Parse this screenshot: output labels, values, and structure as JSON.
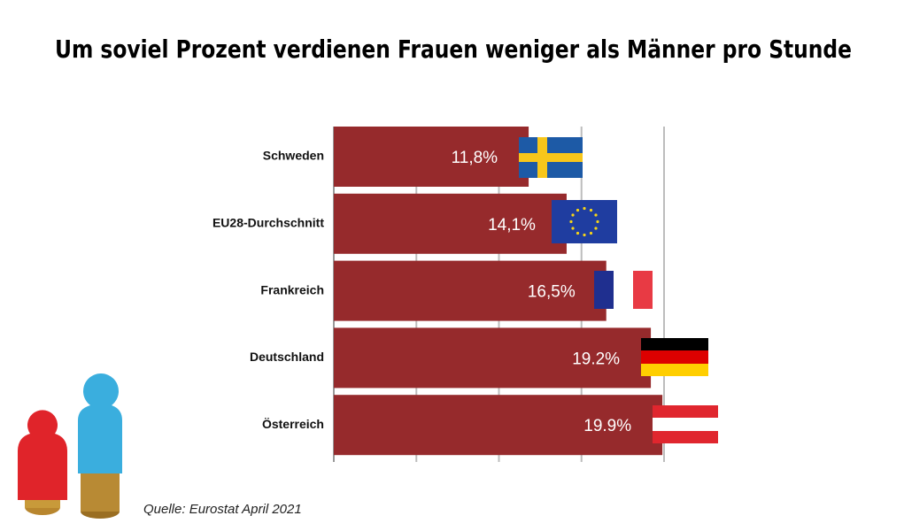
{
  "chart_data": {
    "type": "bar",
    "orientation": "horizontal",
    "title": "Um soviel Prozent verdienen Frauen weniger als Männer pro Stunde",
    "categories": [
      "Schweden",
      "EU28-Durchschnitt",
      "Frankreich",
      "Deutschland",
      "Österreich"
    ],
    "values": [
      11.8,
      14.1,
      16.5,
      19.2,
      19.9
    ],
    "value_labels": [
      "11,8%",
      "14,1%",
      "16,5%",
      "19.2%",
      "19.9%"
    ],
    "color": "#962a2c",
    "xlim": [
      0,
      20
    ],
    "xticks": [
      0,
      5,
      10,
      15,
      20
    ],
    "grid": true,
    "source": "Quelle: Eurostat April 2021"
  }
}
